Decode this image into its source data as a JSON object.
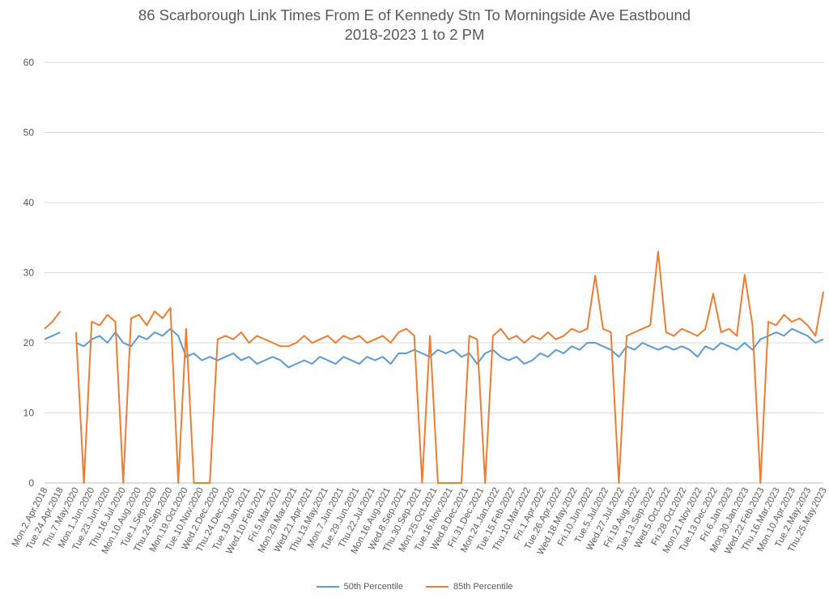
{
  "chart_data": {
    "type": "line",
    "title": "86 Scarborough Link Times From E of Kennedy Stn To Morningside Ave Eastbound",
    "subtitle": "2018-2023 1 to 2 PM",
    "xlabel": "",
    "ylabel": "",
    "ylim": [
      0,
      60
    ],
    "yticks": [
      0,
      10,
      20,
      30,
      40,
      50,
      60
    ],
    "grid": true,
    "legend_position": "bottom",
    "x_tick_labels": [
      "Mon.2.Apr.2018",
      "Tue.24.Apr.2018",
      "Thu.7.May.2020",
      "Mon.1.Jun.2020",
      "Tue.23.Jun.2020",
      "Thu.16.Jul.2020",
      "Mon.10.Aug.2020",
      "Tue.1.Sep.2020",
      "Thu.24.Sep.2020",
      "Mon.19.Oct.2020",
      "Tue.10.Nov.2020",
      "Wed.2.Dec.2020",
      "Thu.24.Dec.2020",
      "Tue.19.Jan.2021",
      "Wed.10.Feb.2021",
      "Fri.5.Mar.2021",
      "Mon.29.Mar.2021",
      "Wed.21.Apr.2021",
      "Thu.13.May.2021",
      "Mon.7.Jun.2021",
      "Tue.29.Jun.2021",
      "Thu.22.Jul.2021",
      "Mon.16.Aug.2021",
      "Wed.8.Sep.2021",
      "Thu.30.Sep.2021",
      "Mon.25.Oct.2021",
      "Tue.16.Nov.2021",
      "Wed.8.Dec.2021",
      "Fri.31.Dec.2021",
      "Mon.24.Jan.2022",
      "Tue.15.Feb.2022",
      "Thu.10.Mar.2022",
      "Fri.1.Apr.2022",
      "Tue.26.Apr.2022",
      "Wed.18.May.2022",
      "Fri.10.Jun.2022",
      "Tue.5.Jul.2022",
      "Wed.27.Jul.2022",
      "Fri.19.Aug.2022",
      "Tue.13.Sep.2022",
      "Wed.5.Oct.2022",
      "Fri.28.Oct.2022",
      "Mon.21.Nov.2022",
      "Tue.13.Dec.2022",
      "Fri.6.Jan.2023",
      "Mon.30.Jan.2023",
      "Wed.22.Feb.2023",
      "Thu.16.Mar.2023",
      "Mon.10.Apr.2023",
      "Tue.2.May.2023",
      "Thu.25.May.2023"
    ],
    "series": [
      {
        "name": "50th Percentile",
        "color": "#5B9BD5",
        "values": [
          20.5,
          21,
          21.5,
          null,
          20,
          19.5,
          20.5,
          21,
          20,
          21.5,
          20,
          19.5,
          21,
          20.5,
          21.5,
          21,
          22,
          21,
          18,
          18.5,
          17.5,
          18,
          17.5,
          18,
          18.5,
          17.5,
          18,
          17,
          17.5,
          18,
          17.5,
          16.5,
          17,
          17.5,
          17,
          18,
          17.5,
          17,
          18,
          17.5,
          17,
          18,
          17.5,
          18,
          17,
          18.5,
          18.5,
          19,
          18.5,
          18,
          19,
          18.5,
          19,
          18,
          18.5,
          17,
          18.5,
          19,
          18,
          17.5,
          18,
          17,
          17.5,
          18.5,
          18,
          19,
          18.5,
          19.5,
          19,
          20,
          20,
          19.5,
          19,
          18,
          19.5,
          19,
          20,
          19.5,
          19,
          19.5,
          19,
          19.5,
          19,
          18,
          19.5,
          19,
          20,
          19.5,
          19,
          20,
          19,
          20.5,
          21,
          21.5,
          21,
          22,
          21.5,
          21,
          20,
          20.5
        ]
      },
      {
        "name": "85th Percentile",
        "color": "#ED7D31",
        "values": [
          22,
          23,
          24.5,
          null,
          21.5,
          0,
          23,
          22.5,
          24,
          23,
          0,
          23.5,
          24,
          22.5,
          24.5,
          23.5,
          25,
          0,
          22,
          0,
          0,
          0,
          20.5,
          21,
          20.5,
          21.5,
          20,
          21,
          20.5,
          20,
          19.5,
          19.5,
          20,
          21,
          20,
          20.5,
          21,
          20,
          21,
          20.5,
          21,
          20,
          20.5,
          21,
          20,
          21.5,
          22,
          21,
          0,
          21,
          0,
          0,
          0,
          0,
          21,
          20.5,
          0,
          21,
          22,
          20.5,
          21,
          20,
          21,
          20.5,
          21.5,
          20.5,
          21,
          22,
          21.5,
          22,
          29.6,
          22,
          21.5,
          0,
          21,
          21.5,
          22,
          22.5,
          33,
          21.5,
          21,
          22,
          21.5,
          21,
          22,
          27,
          21.5,
          22,
          21,
          29.7,
          22.5,
          0,
          23,
          22.5,
          24,
          23,
          23.5,
          22.5,
          21,
          27.3
        ]
      }
    ]
  }
}
